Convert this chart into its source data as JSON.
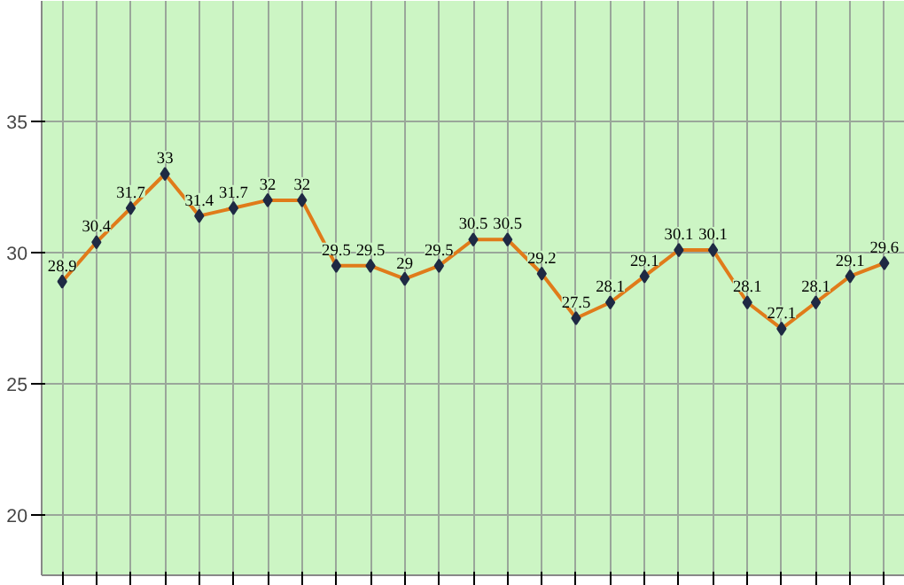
{
  "chart_data": {
    "type": "line",
    "categories": [
      null,
      null,
      null,
      null,
      null,
      null,
      null,
      null,
      null,
      null,
      null,
      null,
      null,
      null,
      null,
      null,
      null,
      null,
      null,
      null,
      null,
      null,
      null,
      null,
      null
    ],
    "series": [
      {
        "color": "#e07b1a",
        "values": [
          28.9,
          30.4,
          31.7,
          33,
          31.4,
          31.7,
          32,
          32,
          29.5,
          29.5,
          29,
          29.5,
          30.5,
          30.5,
          29.2,
          27.5,
          28.1,
          29.1,
          30.1,
          30.1,
          28.1,
          27.1,
          28.1,
          29.1,
          29.6
        ]
      }
    ],
    "ylim": [
      17.7,
      39.6
    ],
    "yticks": [
      20,
      25,
      30,
      35
    ],
    "grid": true,
    "marker": "diamond",
    "data_labels": true,
    "tick_labels": "y"
  }
}
